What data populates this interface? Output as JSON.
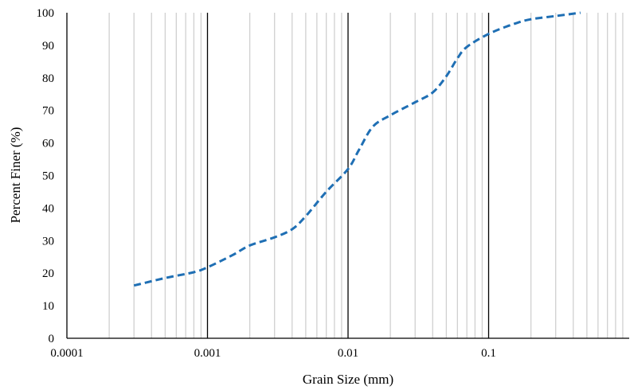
{
  "chart_data": {
    "type": "line",
    "xscale": "log",
    "xlim": [
      0.0001,
      1
    ],
    "ylim": [
      0,
      100
    ],
    "xlabel": "Grain Size (mm)",
    "ylabel": "Percent Finer (%)",
    "x_ticks": [
      0.0001,
      0.001,
      0.01,
      0.1
    ],
    "x_tick_labels": [
      "0.0001",
      "0.001",
      "0.01",
      "0.1"
    ],
    "y_ticks": [
      0,
      10,
      20,
      30,
      40,
      50,
      60,
      70,
      80,
      90,
      100
    ],
    "y_tick_labels": [
      "0",
      "10",
      "20",
      "30",
      "40",
      "50",
      "60",
      "70",
      "80",
      "90",
      "100"
    ],
    "grid": "vertical minor log gridlines (gray), major decade lines (black)",
    "series": [
      {
        "color": "#1f6fb4",
        "line_style": "dashed",
        "x": [
          0.0003,
          0.0005,
          0.0008,
          0.001,
          0.0015,
          0.002,
          0.003,
          0.004,
          0.005,
          0.007,
          0.01,
          0.012,
          0.015,
          0.02,
          0.03,
          0.04,
          0.05,
          0.06,
          0.07,
          0.1,
          0.15,
          0.2,
          0.3,
          0.45
        ],
        "y": [
          16.2,
          18.5,
          20.3,
          21.8,
          25.5,
          28.5,
          31.0,
          33.5,
          37.5,
          45.0,
          52.0,
          58.0,
          65.0,
          68.5,
          72.5,
          75.5,
          80.5,
          86.0,
          89.5,
          93.5,
          96.5,
          98.0,
          99.0,
          100.0
        ]
      }
    ]
  }
}
